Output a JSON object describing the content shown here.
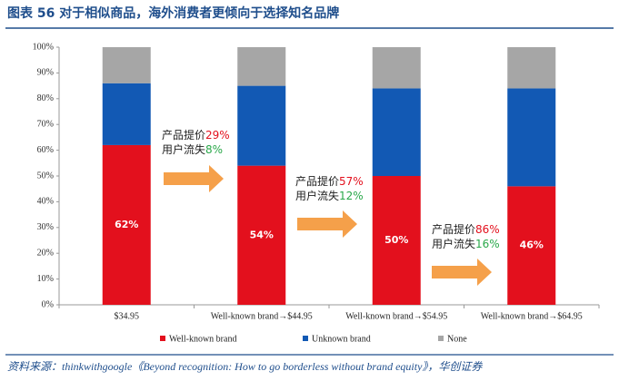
{
  "chart_data": {
    "type": "stacked_bar",
    "title": "图表 56  对于相似商品，海外消费者更倾向于选择知名品牌",
    "source": "资料来源：thinkwithgoogle《Beyond recognition: How to go borderless without brand equity》，华创证券",
    "categories": [
      "$34.95",
      "Well-known brand→$44.95",
      "Well-known brand→$54.95",
      "Well-known brand→$64.95"
    ],
    "series": [
      {
        "name": "Well-known brand",
        "color": "#e3101d",
        "values": [
          62,
          54,
          50,
          46
        ],
        "value_labels": [
          "62%",
          "54%",
          "50%",
          "46%"
        ]
      },
      {
        "name": "Unknown brand",
        "color": "#1259b4",
        "values": [
          24,
          31,
          34,
          38
        ]
      },
      {
        "name": "None",
        "color": "#a6a6a6",
        "values": [
          14,
          15,
          16,
          16
        ]
      }
    ],
    "ylim": [
      0,
      100
    ],
    "yticks": [
      {
        "value": 0,
        "label": "0%"
      },
      {
        "value": 10,
        "label": "10%"
      },
      {
        "value": 20,
        "label": "20%"
      },
      {
        "value": 30,
        "label": "30%"
      },
      {
        "value": 40,
        "label": "40%"
      },
      {
        "value": 50,
        "label": "50%"
      },
      {
        "value": 60,
        "label": "60%"
      },
      {
        "value": 70,
        "label": "70%"
      },
      {
        "value": 80,
        "label": "80%"
      },
      {
        "value": 90,
        "label": "90%"
      },
      {
        "value": 100,
        "label": "100%"
      }
    ],
    "annotations": [
      {
        "price_label": "产品提价",
        "price": "29%",
        "loss_label": "用户流失",
        "loss": "8%"
      },
      {
        "price_label": "产品提价",
        "price": "57%",
        "loss_label": "用户流失",
        "loss": "12%"
      },
      {
        "price_label": "产品提价",
        "price": "86%",
        "loss_label": "用户流失",
        "loss": "16%"
      }
    ],
    "legend": "bottom"
  }
}
